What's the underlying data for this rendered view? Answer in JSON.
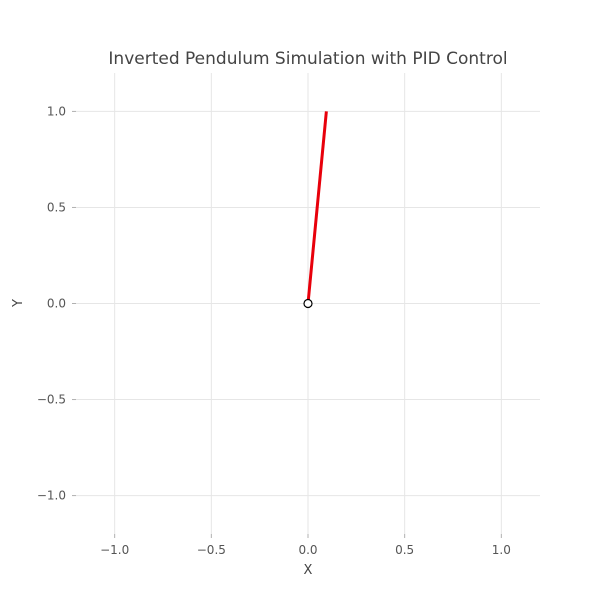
{
  "chart_data": {
    "type": "line",
    "title": "Inverted Pendulum Simulation with PID Control",
    "xlabel": "X",
    "ylabel": "Y",
    "xlim": [
      -1.2,
      1.2
    ],
    "ylim": [
      -1.2,
      1.2
    ],
    "grid": true,
    "x_ticks": [
      -1.0,
      -0.5,
      0.0,
      0.5,
      1.0
    ],
    "y_ticks": [
      -1.0,
      -0.5,
      0.0,
      0.5,
      1.0
    ],
    "x_tick_labels": [
      "−1.0",
      "−0.5",
      "0.0",
      "0.5",
      "1.0"
    ],
    "y_tick_labels": [
      "−1.0",
      "−0.5",
      "0.0",
      "0.5",
      "1.0"
    ],
    "series": [
      {
        "x": [
          0.0,
          0.095
        ],
        "y": [
          0.0,
          1.0
        ],
        "color": "#e8000b"
      }
    ],
    "pivot": {
      "x": 0.0,
      "y": 0.0,
      "marker": "open-circle",
      "color": "#000000"
    }
  }
}
